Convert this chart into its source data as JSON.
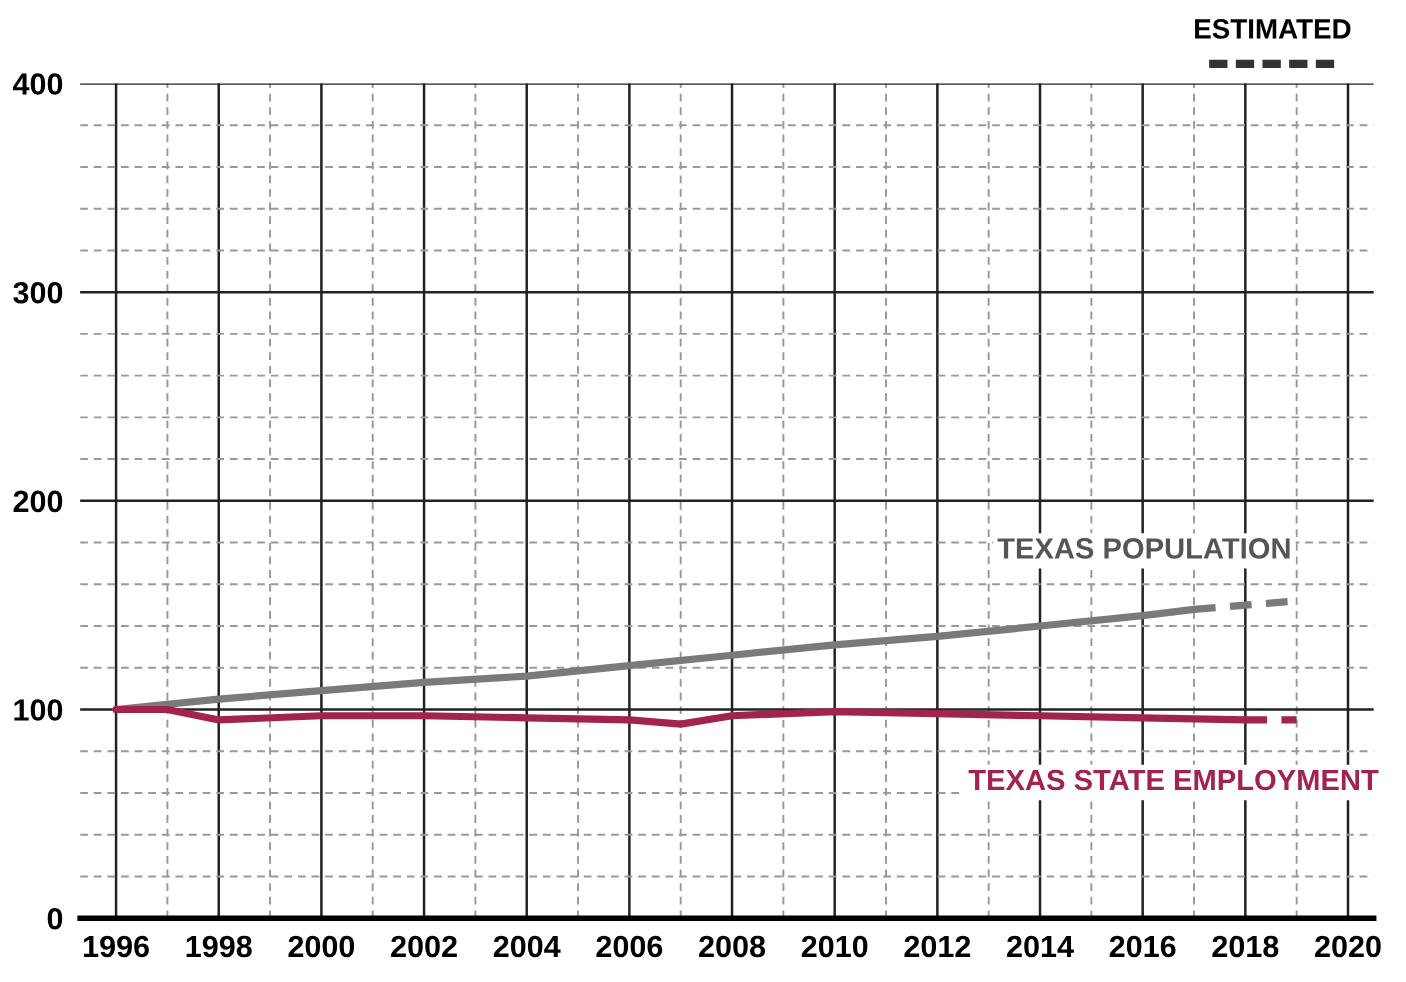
{
  "chart_data": {
    "type": "line",
    "annotations": [
      "ESTIMATED"
    ],
    "series": [
      {
        "name": "TEXAS POPULATION",
        "color": "#7a7a7a",
        "line_style": "solid",
        "x": [
          1996,
          1998,
          2000,
          2002,
          2004,
          2006,
          2008,
          2010,
          2012,
          2014,
          2016,
          2017
        ],
        "values": [
          100,
          105,
          109,
          113,
          116,
          121,
          126,
          131,
          135,
          140,
          145,
          148
        ]
      },
      {
        "color": "#7a7a7a",
        "line_style": "dashed",
        "x": [
          2017,
          2019
        ],
        "values": [
          148,
          152
        ]
      },
      {
        "name": "TEXAS STATE EMPLOYMENT",
        "color": "#a3234f",
        "line_style": "solid",
        "x": [
          1996,
          1997,
          1998,
          2000,
          2002,
          2004,
          2006,
          2007,
          2008,
          2010,
          2012,
          2014,
          2016,
          2018
        ],
        "values": [
          100,
          100,
          95,
          97,
          97,
          96,
          95,
          93,
          97,
          99,
          98,
          97,
          96,
          95
        ]
      },
      {
        "color": "#a3234f",
        "line_style": "dashed",
        "x": [
          2018,
          2019
        ],
        "values": [
          95,
          95
        ]
      }
    ],
    "xlim": [
      1995.3,
      2020.5
    ],
    "ylim": [
      0,
      400
    ],
    "xticks": [
      1996,
      {
        "value": 1997,
        "label": null
      },
      1998,
      {
        "value": 1999,
        "label": null
      },
      2000,
      {
        "value": 2001,
        "label": null
      },
      2002,
      {
        "value": 2003,
        "label": null
      },
      2004,
      {
        "value": 2005,
        "label": null
      },
      2006,
      {
        "value": 2007,
        "label": null
      },
      2008,
      {
        "value": 2009,
        "label": null
      },
      2010,
      {
        "value": 2011,
        "label": null
      },
      2012,
      {
        "value": 2013,
        "label": null
      },
      2014,
      {
        "value": 2015,
        "label": null
      },
      2016,
      {
        "value": 2017,
        "label": null
      },
      2018,
      {
        "value": 2019,
        "label": null
      },
      2020
    ],
    "yticks": [
      0,
      {
        "value": 20,
        "label": null
      },
      {
        "value": 40,
        "label": null
      },
      {
        "value": 60,
        "label": null
      },
      {
        "value": 80,
        "label": null
      },
      100,
      {
        "value": 120,
        "label": null
      },
      {
        "value": 140,
        "label": null
      },
      {
        "value": 160,
        "label": null
      },
      {
        "value": 180,
        "label": null
      },
      200,
      {
        "value": 220,
        "label": null
      },
      {
        "value": 240,
        "label": null
      },
      {
        "value": 260,
        "label": null
      },
      {
        "value": 280,
        "label": null
      },
      300,
      {
        "value": 320,
        "label": null
      },
      {
        "value": 340,
        "label": null
      },
      {
        "value": 360,
        "label": null
      },
      {
        "value": 380,
        "label": null
      },
      400
    ],
    "grid": true,
    "marker": "none"
  }
}
